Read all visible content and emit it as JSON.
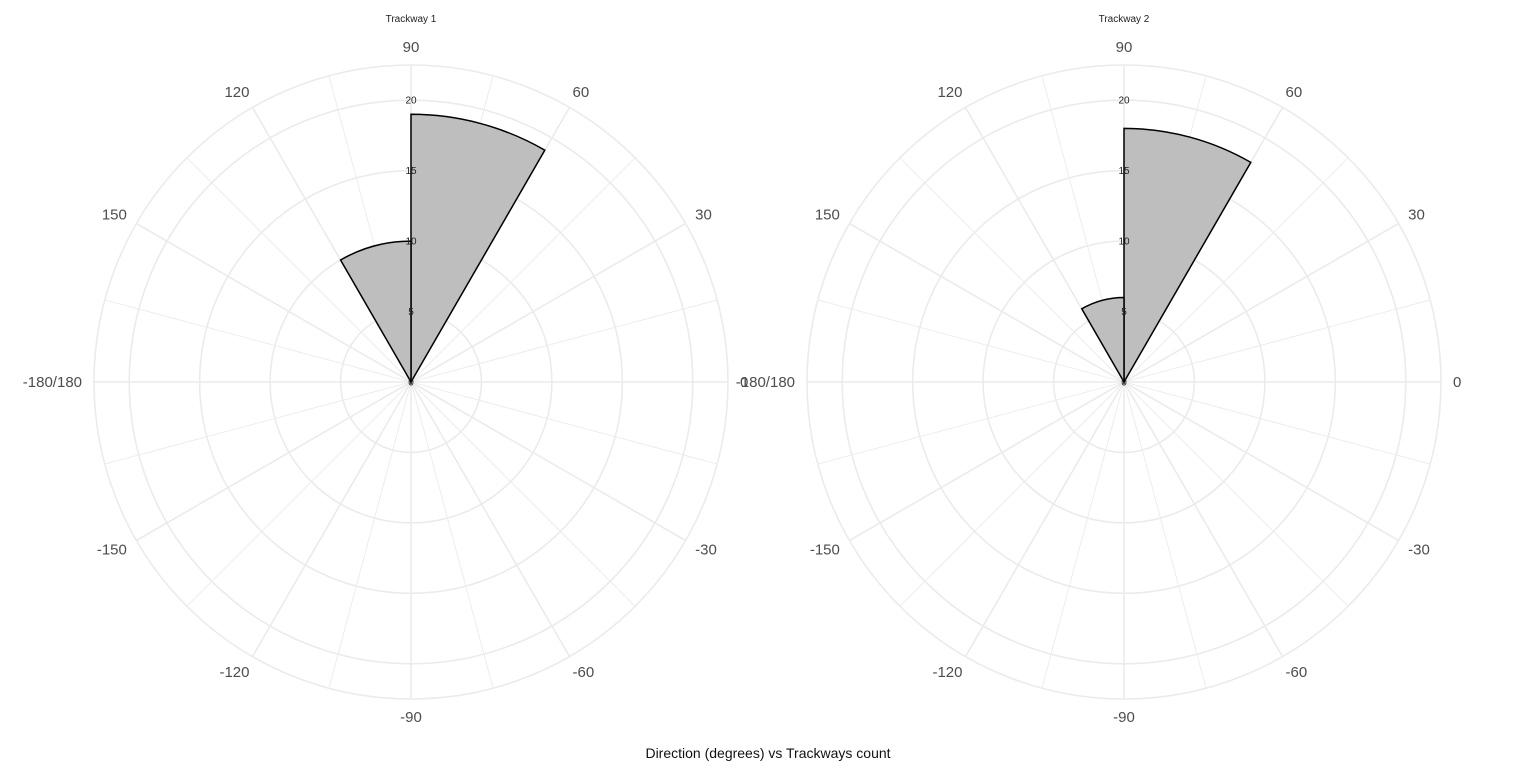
{
  "chart_data": [
    {
      "type": "polar-histogram",
      "title": "Trackway 1",
      "angle_ticks": [
        "90",
        "60",
        "30",
        "0",
        "-30",
        "-60",
        "-90",
        "-120",
        "-150",
        "-180/180",
        "150",
        "120"
      ],
      "radial_ticks": [
        "0",
        "5",
        "10",
        "15",
        "20"
      ],
      "rlim": [
        0,
        22.5
      ],
      "bin_width_degrees": 30,
      "bars": [
        {
          "from_deg": 60,
          "to_deg": 90,
          "count": 19
        },
        {
          "from_deg": 90,
          "to_deg": 120,
          "count": 10
        }
      ]
    },
    {
      "type": "polar-histogram",
      "title": "Trackway 2",
      "angle_ticks": [
        "90",
        "60",
        "30",
        "0",
        "-30",
        "-60",
        "-90",
        "-120",
        "-150",
        "-180/180",
        "150",
        "120"
      ],
      "radial_ticks": [
        "0",
        "5",
        "10",
        "15",
        "20"
      ],
      "rlim": [
        0,
        22.5
      ],
      "bin_width_degrees": 30,
      "bars": [
        {
          "from_deg": 60,
          "to_deg": 90,
          "count": 18
        },
        {
          "from_deg": 90,
          "to_deg": 120,
          "count": 6
        }
      ]
    }
  ],
  "caption": "Direction (degrees) vs Trackways count",
  "colors": {
    "bar_fill": "#bebebe",
    "bar_stroke": "#000000",
    "grid": "#ebebeb"
  }
}
